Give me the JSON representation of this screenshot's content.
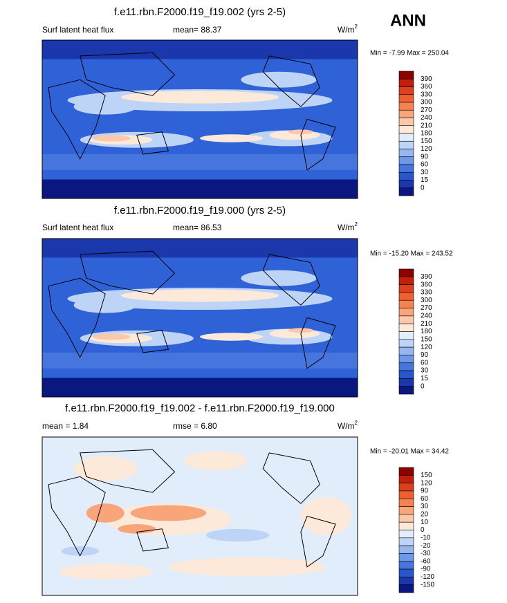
{
  "header": {
    "season": "ANN"
  },
  "panels": [
    {
      "title": "f.e11.rbn.F2000.f19_f19.002 (yrs 2-5)",
      "left": "Surf latent heat flux",
      "center": "mean=  88.37",
      "units": "W/m",
      "units_power": "2",
      "range": "Min =  -7.99 Max = 250.04",
      "colorbar": {
        "levels": [
          390,
          360,
          330,
          300,
          270,
          240,
          210,
          180,
          150,
          120,
          90,
          60,
          30,
          15,
          0
        ],
        "colors": [
          "#8e0000",
          "#c0200a",
          "#dc401c",
          "#ec6032",
          "#f4834f",
          "#f8a57a",
          "#fbc8a9",
          "#fde9da",
          "#e2edfc",
          "#bdd4f7",
          "#94b7f0",
          "#6d97e7",
          "#4676dd",
          "#2a56cc",
          "#1a37ab",
          "#0a1780"
        ]
      }
    },
    {
      "title": "f.e11.rbn.F2000.f19_f19.000 (yrs 2-5)",
      "left": "Surf latent heat flux",
      "center": "mean=  86.53",
      "units": "W/m",
      "units_power": "2",
      "range": "Min = -15.20 Max = 243.52",
      "colorbar": {
        "levels": [
          390,
          360,
          330,
          300,
          270,
          240,
          210,
          180,
          150,
          120,
          90,
          60,
          30,
          15,
          0
        ],
        "colors": [
          "#8e0000",
          "#c0200a",
          "#dc401c",
          "#ec6032",
          "#f4834f",
          "#f8a57a",
          "#fbc8a9",
          "#fde9da",
          "#e2edfc",
          "#bdd4f7",
          "#94b7f0",
          "#6d97e7",
          "#4676dd",
          "#2a56cc",
          "#1a37ab",
          "#0a1780"
        ]
      }
    },
    {
      "title": "f.e11.rbn.F2000.f19_f19.002 - f.e11.rbn.F2000.f19_f19.000",
      "left": "mean =   1.84",
      "center": "rmse =   6.80",
      "units": "W/m",
      "units_power": "2",
      "range": "Min = -20.01 Max =  34.42",
      "colorbar": {
        "levels": [
          150,
          120,
          90,
          60,
          30,
          20,
          10,
          0,
          -10,
          -20,
          -30,
          -60,
          -90,
          -120,
          -150
        ],
        "colors": [
          "#8e0000",
          "#c0200a",
          "#dc401c",
          "#ec6032",
          "#f4834f",
          "#f8a57a",
          "#fbc8a9",
          "#fde9da",
          "#e2edfc",
          "#bdd4f7",
          "#94b7f0",
          "#6d97e7",
          "#4676dd",
          "#2a56cc",
          "#1a37ab",
          "#0a1780"
        ]
      }
    }
  ]
}
